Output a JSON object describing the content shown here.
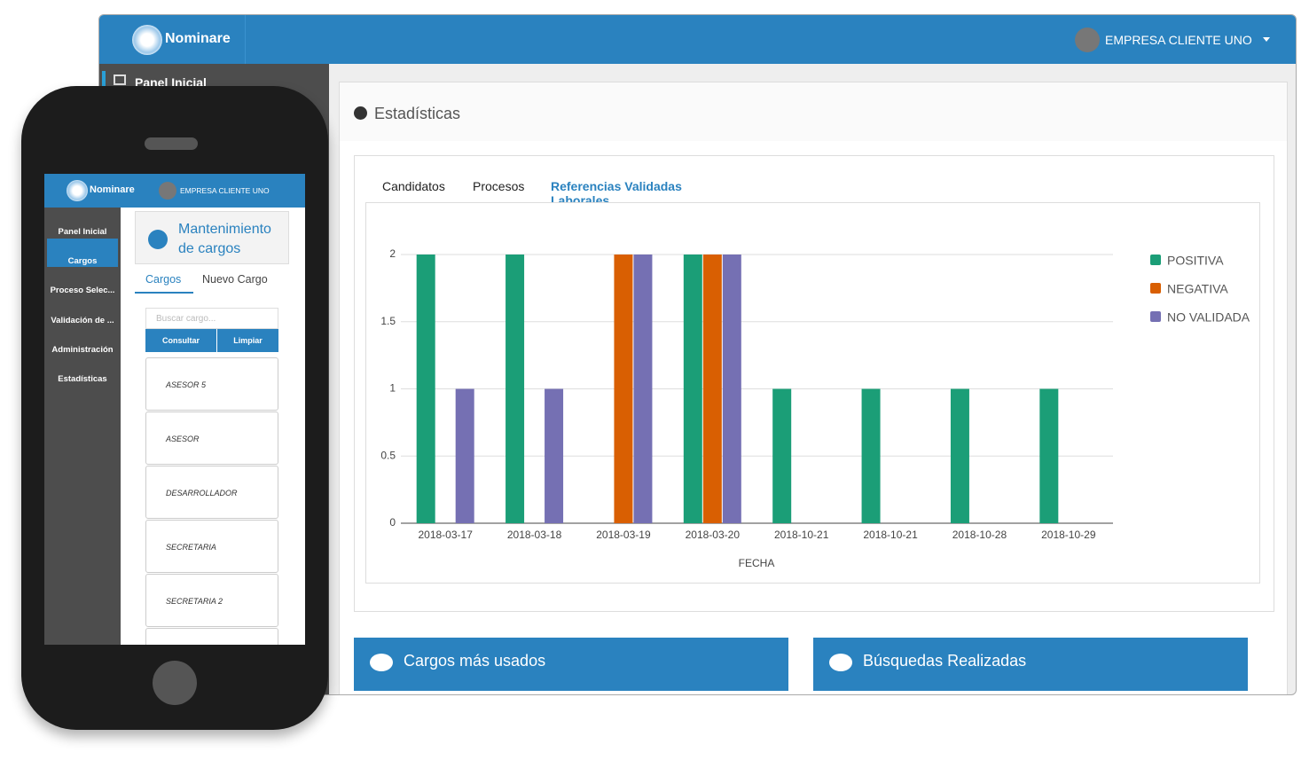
{
  "desktop": {
    "brand": "Nominare",
    "company": "EMPRESA CLIENTE UNO",
    "sidebar": [
      "Panel Inicial"
    ],
    "section_title": "Estadísticas",
    "tabs": [
      "Candidatos",
      "Procesos",
      "Referencias Validadas Laborales"
    ],
    "panels": [
      "Cargos más usados",
      "Búsquedas Realizadas"
    ]
  },
  "chart_data": {
    "type": "bar",
    "x_label": "FECHA",
    "categories": [
      "2018-03-17",
      "2018-03-18",
      "2018-03-19",
      "2018-03-20",
      "2018-10-21",
      "2018-10-21",
      "2018-10-28",
      "2018-10-29"
    ],
    "series": [
      {
        "name": "POSITIVA",
        "color": "#1b9e77",
        "values": [
          2,
          2,
          0,
          2,
          1,
          1,
          1,
          1
        ]
      },
      {
        "name": "NEGATIVA",
        "color": "#d95f02",
        "values": [
          0,
          0,
          2,
          2,
          0,
          0,
          0,
          0
        ]
      },
      {
        "name": "NO VALIDADA",
        "color": "#7570b3",
        "values": [
          1,
          1,
          2,
          2,
          0,
          0,
          0,
          0
        ]
      }
    ],
    "ylim": [
      0,
      2
    ],
    "yticks": [
      0,
      0.5,
      1,
      1.5,
      2
    ],
    "grid": true,
    "legend": "right"
  },
  "mobile": {
    "brand": "Nominare",
    "company": "EMPRESA CLIENTE UNO",
    "sidebar": [
      "Panel Inicial",
      "Cargos",
      "Proceso Selec...",
      "Validación de ...",
      "Administración",
      "Estadísticas"
    ],
    "title": "Mantenimiento de cargos",
    "tabs": [
      "Cargos",
      "Nuevo Cargo"
    ],
    "search_placeholder": "Buscar cargo...",
    "buttons": [
      "Consultar",
      "Limpiar"
    ],
    "list": [
      "ASESOR 5",
      "ASESOR",
      "DESARROLLADOR",
      "SECRETARIA",
      "SECRETARIA 2"
    ]
  }
}
